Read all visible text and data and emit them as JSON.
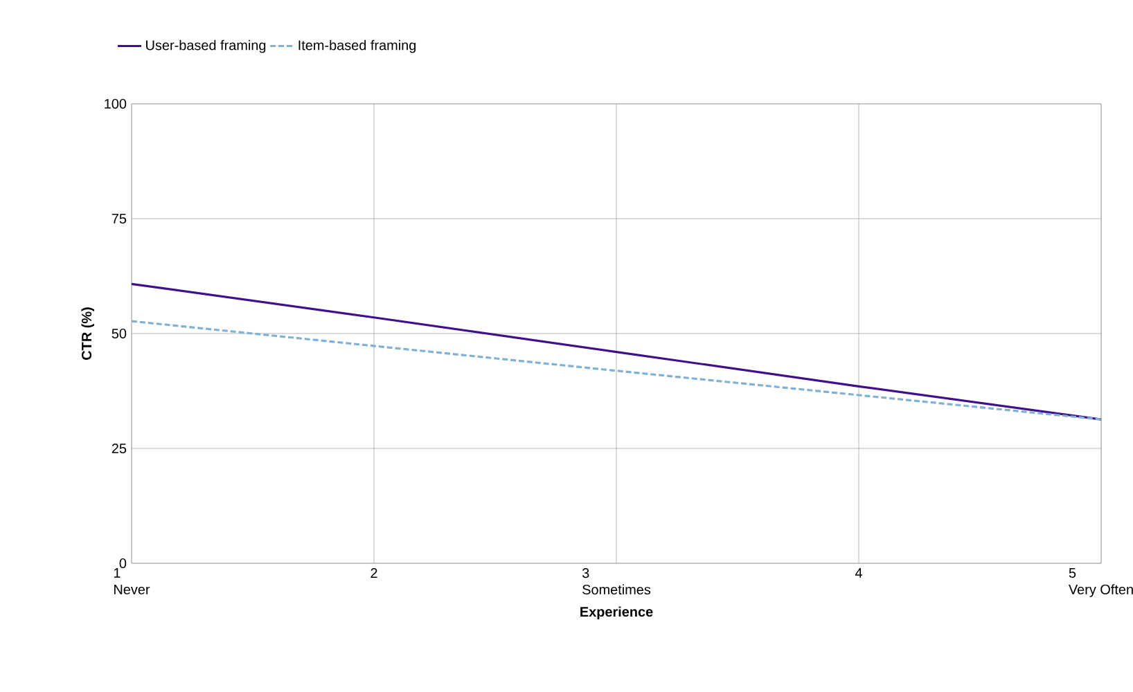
{
  "chart_data": {
    "type": "line",
    "xlabel": "Experience",
    "ylabel": "CTR (%)",
    "x": [
      1,
      2,
      3,
      4,
      5
    ],
    "series": [
      {
        "name": "User-based framing",
        "color": "#3f0f8c",
        "values": [
          60.8,
          53.5,
          46,
          38.5,
          31.3
        ],
        "line_style": "solid"
      },
      {
        "name": "Item-based framing",
        "color": "#7fb0d6",
        "values": [
          52.7,
          47.3,
          41.9,
          36.6,
          31.3
        ],
        "line_style": "dashed"
      }
    ],
    "xlim": [
      1,
      5
    ],
    "ylim": [
      0,
      100
    ],
    "xticks": [
      {
        "value": 1,
        "label": "1\nNever"
      },
      {
        "value": 2,
        "label": "2"
      },
      {
        "value": 3,
        "label": "3\nSometimes"
      },
      {
        "value": 4,
        "label": "4"
      },
      {
        "value": 5,
        "label": "5\nVery Often"
      }
    ],
    "yticks": [
      0,
      25,
      50,
      75,
      100
    ],
    "grid": true,
    "legend": "top left",
    "marker": "none"
  }
}
